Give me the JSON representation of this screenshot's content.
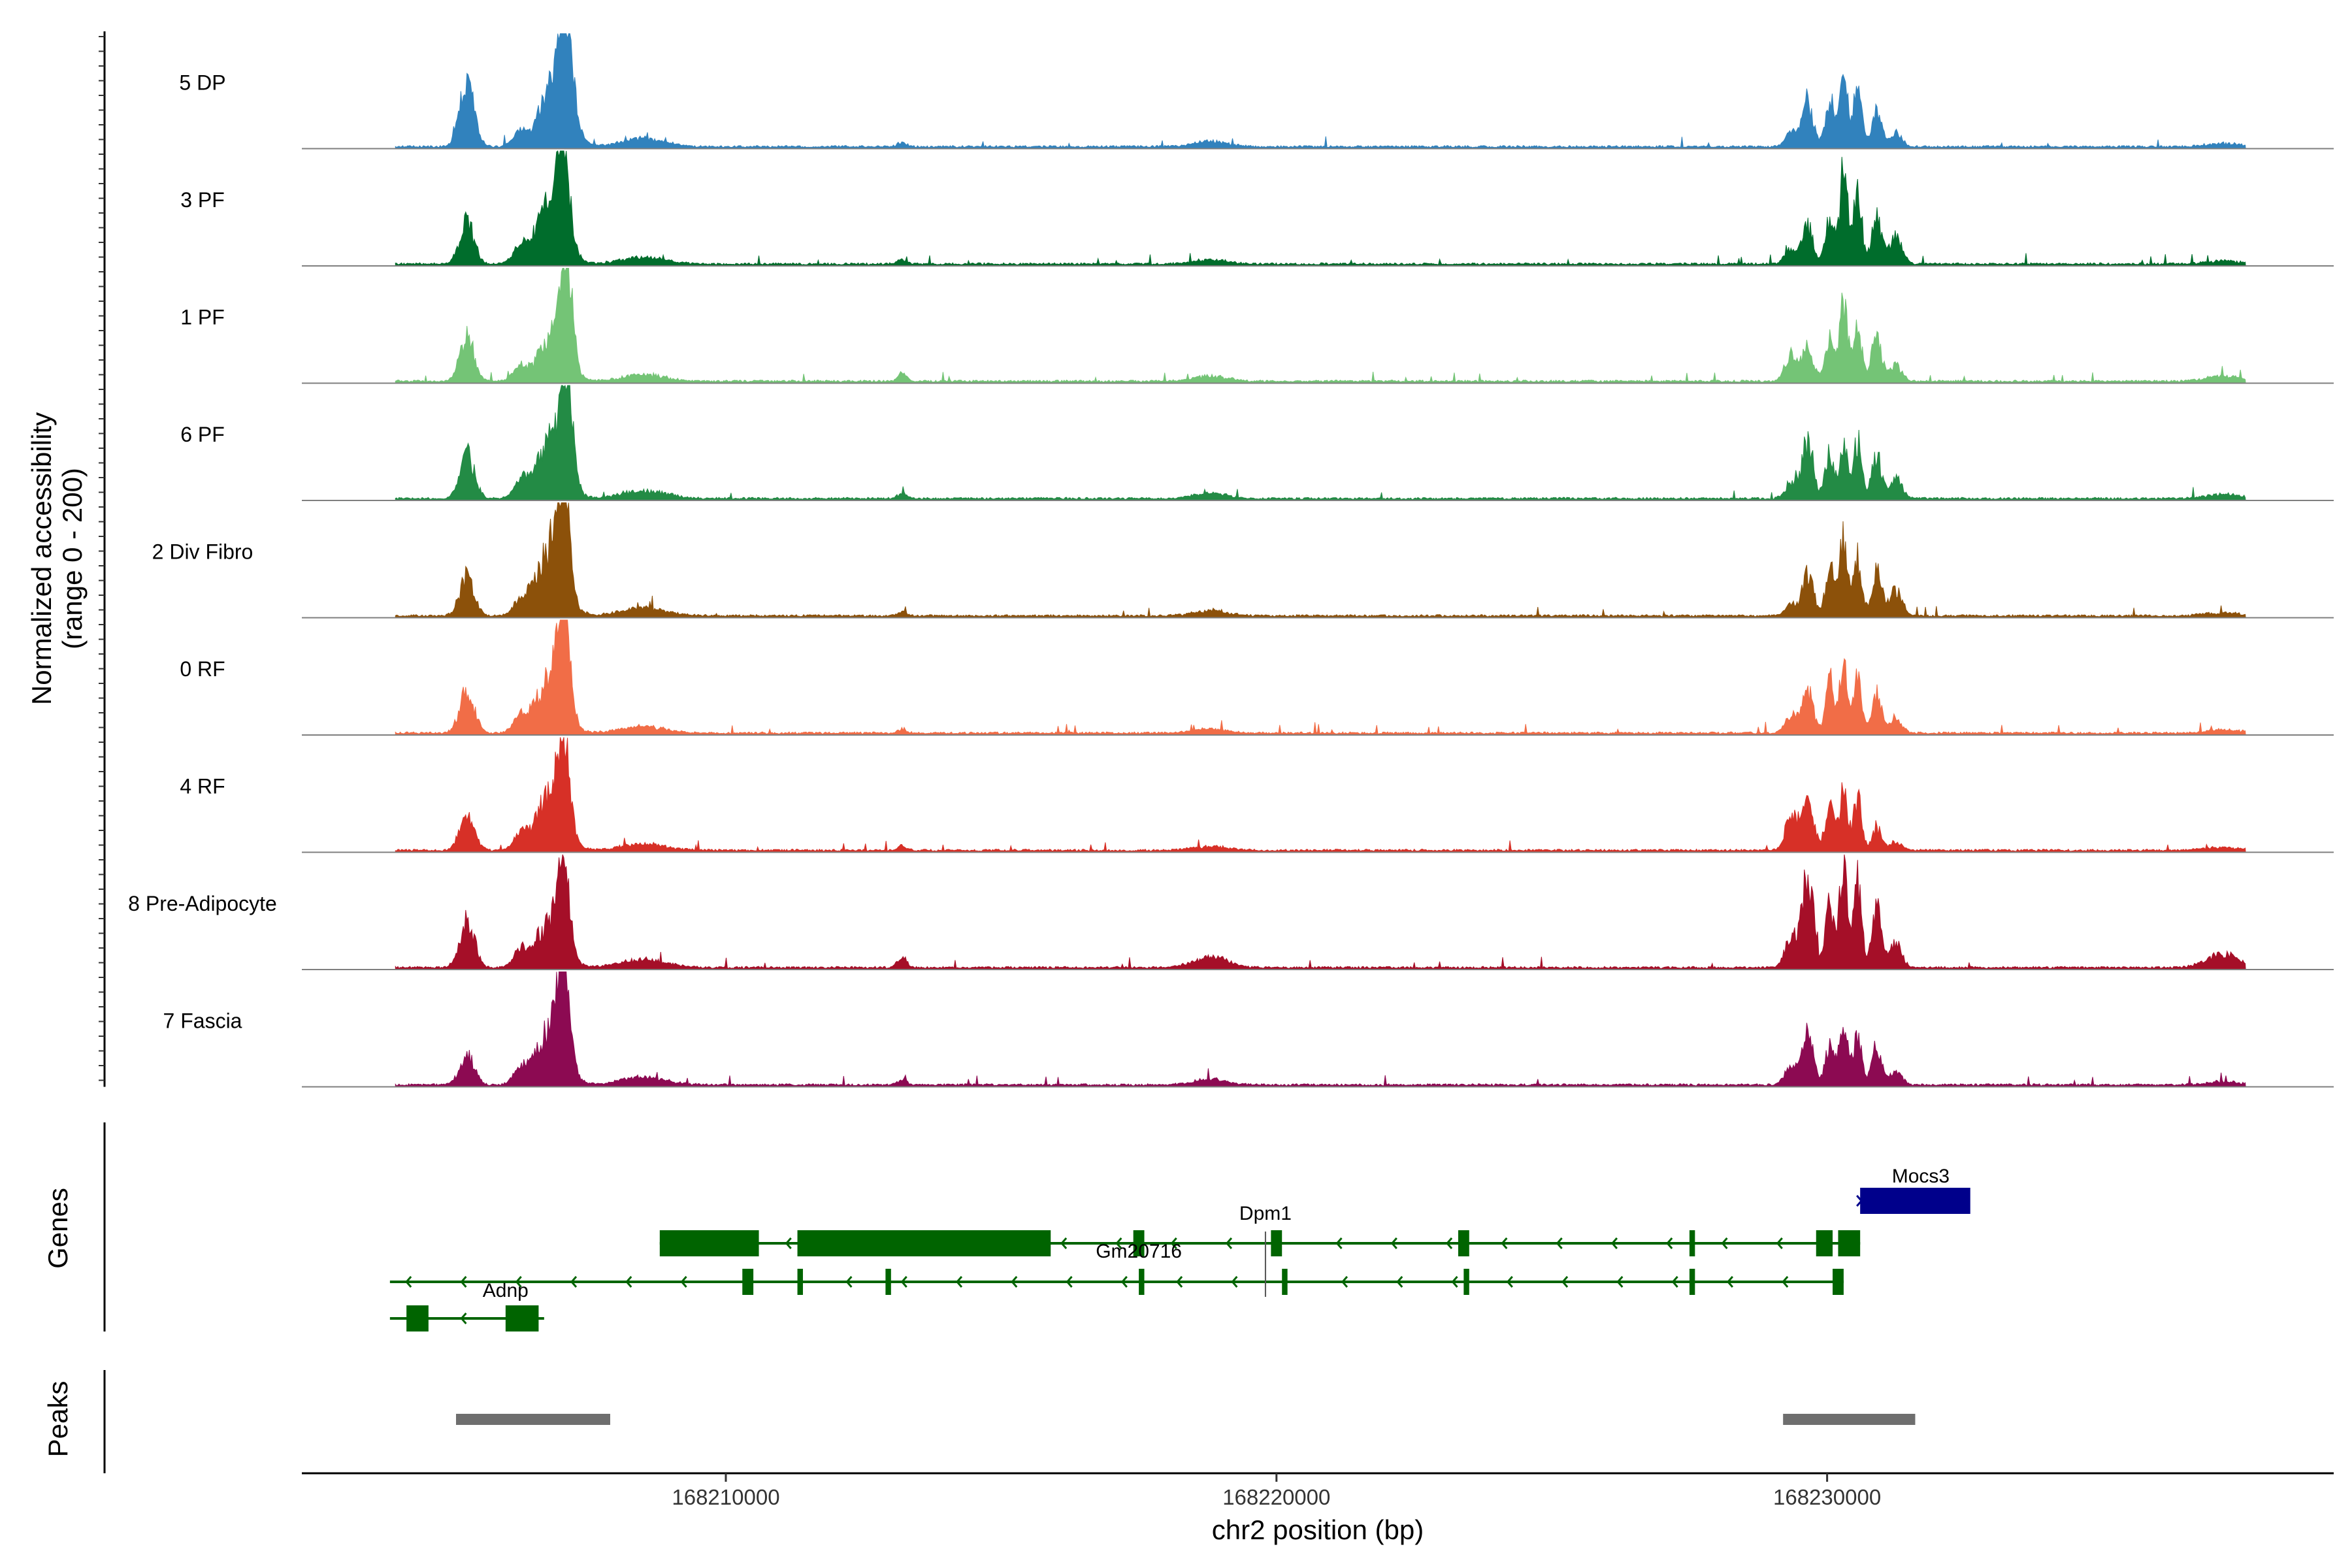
{
  "chart_data": {
    "type": "area",
    "title": "",
    "ylabel_line1": "Normalized accessibility",
    "ylabel_line2": "(range 0 - 200)",
    "xlabel": "chr2 position (bp)",
    "y_range": [
      0,
      200
    ],
    "x_range": [
      168202300,
      168239200
    ],
    "x_ticks": [
      168210000,
      168220000,
      168230000
    ],
    "x_tick_labels": [
      "168210000",
      "168220000",
      "168230000"
    ],
    "series": [
      {
        "name": "5 DP",
        "color": "#3182bd",
        "peaks": [
          [
            168205300,
            120,
            130
          ],
          [
            168206250,
            25,
            120
          ],
          [
            168206900,
            120,
            260
          ],
          [
            168207100,
            200,
            110
          ],
          [
            168208500,
            15,
            400
          ],
          [
            168213200,
            8,
            80
          ],
          [
            168218800,
            10,
            300
          ],
          [
            168229350,
            30,
            110
          ],
          [
            168229650,
            80,
            100
          ],
          [
            168230050,
            95,
            80
          ],
          [
            168230300,
            140,
            70
          ],
          [
            168230550,
            110,
            75
          ],
          [
            168230900,
            70,
            90
          ],
          [
            168231250,
            25,
            110
          ],
          [
            168237200,
            6,
            300
          ]
        ]
      },
      {
        "name": "3 PF",
        "color": "#006d2c",
        "peaks": [
          [
            168205300,
            80,
            130
          ],
          [
            168206250,
            25,
            120
          ],
          [
            168206800,
            110,
            260
          ],
          [
            168207050,
            175,
            110
          ],
          [
            168208500,
            12,
            400
          ],
          [
            168213200,
            8,
            80
          ],
          [
            168218800,
            8,
            300
          ],
          [
            168229350,
            30,
            110
          ],
          [
            168229650,
            70,
            100
          ],
          [
            168230050,
            85,
            80
          ],
          [
            168230300,
            185,
            70
          ],
          [
            168230550,
            145,
            75
          ],
          [
            168230900,
            85,
            90
          ],
          [
            168231250,
            55,
            110
          ],
          [
            168237200,
            6,
            300
          ]
        ]
      },
      {
        "name": "1 PF",
        "color": "#74c476",
        "peaks": [
          [
            168205300,
            85,
            130
          ],
          [
            168206250,
            25,
            120
          ],
          [
            168206850,
            80,
            260
          ],
          [
            168207100,
            200,
            110
          ],
          [
            168208500,
            12,
            400
          ],
          [
            168213200,
            15,
            80
          ],
          [
            168218800,
            10,
            300
          ],
          [
            168229350,
            50,
            110
          ],
          [
            168229650,
            65,
            100
          ],
          [
            168230050,
            90,
            80
          ],
          [
            168230300,
            150,
            70
          ],
          [
            168230550,
            110,
            75
          ],
          [
            168230900,
            85,
            90
          ],
          [
            168231250,
            30,
            110
          ],
          [
            168237200,
            10,
            300
          ]
        ]
      },
      {
        "name": "6 PF",
        "color": "#238b45",
        "peaks": [
          [
            168205300,
            85,
            130
          ],
          [
            168206250,
            25,
            120
          ],
          [
            168206800,
            110,
            260
          ],
          [
            168207100,
            190,
            110
          ],
          [
            168208500,
            15,
            400
          ],
          [
            168213200,
            10,
            80
          ],
          [
            168218800,
            10,
            300
          ],
          [
            168229350,
            30,
            110
          ],
          [
            168229650,
            110,
            100
          ],
          [
            168230050,
            90,
            80
          ],
          [
            168230300,
            110,
            70
          ],
          [
            168230550,
            110,
            75
          ],
          [
            168230900,
            80,
            90
          ],
          [
            168231250,
            40,
            110
          ],
          [
            168237200,
            8,
            300
          ]
        ]
      },
      {
        "name": "2 Div Fibro",
        "color": "#8c510a",
        "peaks": [
          [
            168205300,
            75,
            130
          ],
          [
            168206250,
            20,
            120
          ],
          [
            168206800,
            120,
            260
          ],
          [
            168207050,
            200,
            110
          ],
          [
            168208500,
            15,
            400
          ],
          [
            168213200,
            8,
            80
          ],
          [
            168218800,
            10,
            300
          ],
          [
            168229350,
            20,
            110
          ],
          [
            168229650,
            80,
            100
          ],
          [
            168230050,
            90,
            80
          ],
          [
            168230300,
            150,
            70
          ],
          [
            168230550,
            110,
            75
          ],
          [
            168230900,
            85,
            90
          ],
          [
            168231250,
            50,
            110
          ],
          [
            168237200,
            6,
            300
          ]
        ]
      },
      {
        "name": "0 RF",
        "color": "#f16d47",
        "peaks": [
          [
            168205300,
            80,
            130
          ],
          [
            168206250,
            25,
            120
          ],
          [
            168206800,
            100,
            260
          ],
          [
            168207050,
            195,
            110
          ],
          [
            168208500,
            12,
            400
          ],
          [
            168213200,
            8,
            80
          ],
          [
            168218800,
            8,
            300
          ],
          [
            168229350,
            35,
            110
          ],
          [
            168229650,
            80,
            100
          ],
          [
            168230050,
            100,
            80
          ],
          [
            168230300,
            130,
            70
          ],
          [
            168230550,
            110,
            75
          ],
          [
            168230900,
            75,
            90
          ],
          [
            168231250,
            25,
            110
          ],
          [
            168237200,
            6,
            300
          ]
        ]
      },
      {
        "name": "4 RF",
        "color": "#d73027",
        "peaks": [
          [
            168205300,
            70,
            130
          ],
          [
            168206250,
            25,
            120
          ],
          [
            168206800,
            100,
            260
          ],
          [
            168207050,
            165,
            110
          ],
          [
            168208500,
            12,
            400
          ],
          [
            168213200,
            8,
            80
          ],
          [
            168218800,
            8,
            300
          ],
          [
            168229350,
            65,
            110
          ],
          [
            168229650,
            120,
            100
          ],
          [
            168230050,
            90,
            80
          ],
          [
            168230300,
            115,
            70
          ],
          [
            168230550,
            100,
            75
          ],
          [
            168230900,
            40,
            90
          ],
          [
            168231250,
            15,
            110
          ],
          [
            168237200,
            6,
            300
          ]
        ]
      },
      {
        "name": "8 Pre-Adipocyte",
        "color": "#a50f28",
        "peaks": [
          [
            168205300,
            90,
            130
          ],
          [
            168206250,
            30,
            120
          ],
          [
            168206800,
            80,
            260
          ],
          [
            168207050,
            150,
            110
          ],
          [
            168208500,
            15,
            400
          ],
          [
            168213200,
            20,
            80
          ],
          [
            168218800,
            20,
            300
          ],
          [
            168229350,
            60,
            110
          ],
          [
            168229650,
            180,
            100
          ],
          [
            168230050,
            120,
            80
          ],
          [
            168230300,
            215,
            70
          ],
          [
            168230550,
            160,
            75
          ],
          [
            168230900,
            110,
            90
          ],
          [
            168231250,
            45,
            110
          ],
          [
            168237200,
            25,
            300
          ]
        ]
      },
      {
        "name": "7 Fascia",
        "color": "#8c0a52",
        "peaks": [
          [
            168205300,
            55,
            130
          ],
          [
            168206250,
            25,
            120
          ],
          [
            168206800,
            100,
            260
          ],
          [
            168207050,
            200,
            110
          ],
          [
            168208500,
            15,
            400
          ],
          [
            168213200,
            10,
            80
          ],
          [
            168218800,
            10,
            300
          ],
          [
            168229350,
            40,
            110
          ],
          [
            168229650,
            100,
            100
          ],
          [
            168230050,
            80,
            80
          ],
          [
            168230300,
            120,
            70
          ],
          [
            168230550,
            100,
            75
          ],
          [
            168230900,
            70,
            90
          ],
          [
            168231250,
            25,
            110
          ],
          [
            168237200,
            6,
            300
          ]
        ]
      }
    ],
    "gene_track": {
      "title": "Genes",
      "color": "#006400",
      "labels": [
        {
          "text": "Mocs3",
          "pos": 168231700,
          "row": 0
        },
        {
          "text": "Dpm1",
          "pos": 168219800,
          "row": 1
        },
        {
          "text": "Gm20716",
          "pos": 168217500,
          "row": 2
        },
        {
          "text": "Adnp",
          "pos": 168206000,
          "row": 3
        }
      ],
      "transcripts": [
        {
          "row": 1,
          "start": 168208800,
          "end": 168230600,
          "strand": "-",
          "exons": [
            [
              168208800,
              168210600
            ],
            [
              168211300,
              168215900
            ],
            [
              168217400,
              168217600
            ],
            [
              168219900,
              168220100
            ],
            [
              168223300,
              168223500
            ],
            [
              168227500,
              168227600
            ],
            [
              168229800,
              168230100
            ],
            [
              168230200,
              168230600
            ]
          ]
        },
        {
          "row": 2,
          "start": 168203900,
          "end": 168230300,
          "strand": "-",
          "exons": [
            [
              168210300,
              168210500
            ],
            [
              168211300,
              168211400
            ],
            [
              168212900,
              168213000
            ],
            [
              168217500,
              168217600
            ],
            [
              168220100,
              168220200
            ],
            [
              168223400,
              168223500
            ],
            [
              168227500,
              168227600
            ],
            [
              168230100,
              168230300
            ]
          ]
        },
        {
          "row": 3,
          "start": 168203900,
          "end": 168206700,
          "strand": "-",
          "exons": [
            [
              168204200,
              168204600
            ],
            [
              168206000,
              168206600
            ]
          ]
        }
      ],
      "mocs3": {
        "row": 0,
        "start": 168230600,
        "end": 168232600,
        "strand": "+",
        "color": "#00008b"
      }
    },
    "peaks_track": {
      "title": "Peaks",
      "color": "#6e6e6e",
      "regions": [
        [
          168205100,
          168207900
        ],
        [
          168229200,
          168231600
        ]
      ]
    }
  }
}
